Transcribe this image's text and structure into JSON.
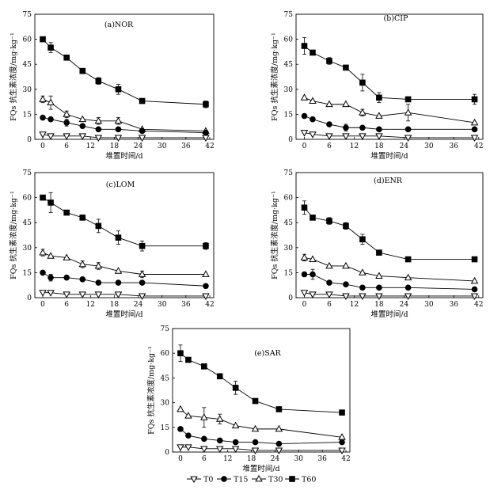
{
  "legend": [
    {
      "series": "T0",
      "label": "T0"
    },
    {
      "series": "T15",
      "label": "T15"
    },
    {
      "series": "T30",
      "label": "T30"
    },
    {
      "series": "T60",
      "label": "T60"
    }
  ],
  "styles": {
    "T0": {
      "marker": "triangle-down",
      "fill": "#ffffff",
      "stroke": "#000000"
    },
    "T15": {
      "marker": "circle",
      "fill": "#000000",
      "stroke": "#000000"
    },
    "T30": {
      "marker": "triangle-up",
      "fill": "#ffffff",
      "stroke": "#000000"
    },
    "T60": {
      "marker": "square",
      "fill": "#000000",
      "stroke": "#000000"
    }
  },
  "chart_data": [
    {
      "type": "line",
      "title": "(a)NOR",
      "xlabel": "堆置时间/d",
      "ylabel": "FQs 抗生素浓度/mg·kg⁻¹",
      "xticks": [
        0,
        6,
        12,
        18,
        24,
        30,
        36,
        42
      ],
      "yticks": [
        0,
        15,
        30,
        45,
        60,
        75
      ],
      "xlim": [
        -2,
        43
      ],
      "ylim": [
        0,
        75
      ],
      "x": [
        0,
        2,
        6,
        10,
        14,
        19,
        25,
        41
      ],
      "series": [
        {
          "name": "T60",
          "values": [
            60,
            55,
            49,
            41,
            35,
            30,
            23,
            21
          ],
          "errors": [
            0,
            3,
            0,
            0,
            2,
            3,
            0,
            2
          ]
        },
        {
          "name": "T30",
          "values": [
            24,
            22,
            15,
            12,
            11,
            11,
            6,
            5
          ],
          "errors": [
            2,
            4,
            2,
            0,
            2,
            2,
            0,
            0
          ]
        },
        {
          "name": "T15",
          "values": [
            13,
            12,
            10,
            8,
            6,
            6,
            5,
            4
          ],
          "errors": [
            0,
            0,
            2,
            0,
            0,
            0,
            0,
            0
          ]
        },
        {
          "name": "T0",
          "values": [
            3,
            2,
            2,
            2,
            1,
            1,
            1,
            1
          ],
          "errors": [
            0,
            0,
            0,
            0,
            0,
            0,
            0,
            0
          ]
        }
      ]
    },
    {
      "type": "line",
      "title": "(b)CIP",
      "xlabel": "堆置时间/d",
      "ylabel": "FQs 抗生素浓度/mg·kg⁻¹",
      "xticks": [
        0,
        6,
        12,
        18,
        24,
        30,
        36,
        42
      ],
      "yticks": [
        0,
        15,
        30,
        45,
        60,
        75
      ],
      "xlim": [
        -2,
        43
      ],
      "ylim": [
        0,
        75
      ],
      "x": [
        0,
        2,
        6,
        10,
        14,
        18,
        25,
        41
      ],
      "series": [
        {
          "name": "T60",
          "values": [
            56,
            52,
            47,
            43,
            34,
            25,
            24,
            24
          ],
          "errors": [
            5,
            0,
            2,
            0,
            5,
            3,
            0,
            3
          ]
        },
        {
          "name": "T30",
          "values": [
            25,
            23,
            21,
            21,
            16,
            14,
            16,
            10
          ],
          "errors": [
            0,
            0,
            0,
            0,
            2,
            0,
            5,
            0
          ]
        },
        {
          "name": "T15",
          "values": [
            14,
            12,
            9,
            7,
            7,
            6,
            6,
            6
          ],
          "errors": [
            0,
            0,
            0,
            2,
            0,
            0,
            0,
            0
          ]
        },
        {
          "name": "T0",
          "values": [
            4,
            3,
            2,
            2,
            2,
            2,
            1,
            1
          ],
          "errors": [
            0,
            0,
            0,
            0,
            0,
            0,
            0,
            0
          ]
        }
      ]
    },
    {
      "type": "line",
      "title": "(c)LOM",
      "xlabel": "堆置时间/d",
      "ylabel": "FQs 抗生素浓度/mg·kg⁻¹",
      "xticks": [
        0,
        6,
        12,
        18,
        24,
        30,
        36,
        42
      ],
      "yticks": [
        0,
        15,
        30,
        45,
        60,
        75
      ],
      "xlim": [
        -2,
        43
      ],
      "ylim": [
        0,
        75
      ],
      "x": [
        0,
        2,
        6,
        10,
        14,
        19,
        25,
        41
      ],
      "series": [
        {
          "name": "T60",
          "values": [
            60,
            57,
            51,
            48,
            43,
            36,
            31,
            31
          ],
          "errors": [
            0,
            6,
            0,
            0,
            4,
            4,
            3,
            2
          ]
        },
        {
          "name": "T30",
          "values": [
            27,
            25,
            24,
            20,
            19,
            16,
            14,
            14
          ],
          "errors": [
            2,
            0,
            0,
            2,
            2,
            0,
            2,
            0
          ]
        },
        {
          "name": "T15",
          "values": [
            15,
            12,
            12,
            11,
            9,
            9,
            9,
            7
          ],
          "errors": [
            0,
            2,
            0,
            0,
            0,
            0,
            0,
            0
          ]
        },
        {
          "name": "T0",
          "values": [
            3,
            3,
            2,
            2,
            2,
            2,
            1,
            1
          ],
          "errors": [
            0,
            0,
            0,
            0,
            0,
            0,
            0,
            0
          ]
        }
      ]
    },
    {
      "type": "line",
      "title": "(d)ENR",
      "xlabel": "堆置时间/d",
      "ylabel": "FQs 抗生素浓度/mg·kg⁻¹",
      "xticks": [
        0,
        6,
        12,
        18,
        24,
        30,
        36,
        42
      ],
      "yticks": [
        0,
        15,
        30,
        45,
        60,
        75
      ],
      "xlim": [
        -2,
        43
      ],
      "ylim": [
        0,
        75
      ],
      "x": [
        0,
        2,
        6,
        10,
        14,
        18,
        25,
        41
      ],
      "series": [
        {
          "name": "T60",
          "values": [
            54,
            48,
            46,
            43,
            35,
            27,
            23,
            23
          ],
          "errors": [
            4,
            0,
            2,
            2,
            3,
            0,
            0,
            0
          ]
        },
        {
          "name": "T30",
          "values": [
            24,
            23,
            19,
            19,
            15,
            13,
            12,
            10
          ],
          "errors": [
            2,
            0,
            0,
            0,
            0,
            0,
            0,
            0
          ]
        },
        {
          "name": "T15",
          "values": [
            14,
            14,
            9,
            8,
            6,
            6,
            6,
            5
          ],
          "errors": [
            0,
            3,
            0,
            0,
            0,
            0,
            0,
            0
          ]
        },
        {
          "name": "T0",
          "values": [
            3,
            2,
            2,
            1,
            1,
            1,
            1,
            1
          ],
          "errors": [
            0,
            0,
            0,
            0,
            0,
            0,
            0,
            0
          ]
        }
      ]
    },
    {
      "type": "line",
      "title": "(e)SAR",
      "xlabel": "堆置时间/d",
      "ylabel": "FQs 抗生素浓度/mg·kg⁻¹",
      "xticks": [
        0,
        6,
        12,
        18,
        24,
        30,
        36,
        42
      ],
      "yticks": [
        0,
        15,
        30,
        45,
        60,
        75
      ],
      "xlim": [
        -2,
        43
      ],
      "ylim": [
        0,
        75
      ],
      "x": [
        0,
        2,
        6,
        10,
        14,
        19,
        25,
        41
      ],
      "series": [
        {
          "name": "T60",
          "values": [
            60,
            56,
            52,
            46,
            39,
            31,
            26,
            24
          ],
          "errors": [
            5,
            0,
            0,
            0,
            4,
            0,
            0,
            0
          ]
        },
        {
          "name": "T30",
          "values": [
            26,
            22,
            21,
            20,
            16,
            14,
            14,
            9
          ],
          "errors": [
            0,
            0,
            6,
            3,
            0,
            0,
            0,
            0
          ]
        },
        {
          "name": "T15",
          "values": [
            14,
            10,
            8,
            7,
            6,
            6,
            5,
            6
          ],
          "errors": [
            0,
            0,
            0,
            0,
            0,
            0,
            0,
            0
          ]
        },
        {
          "name": "T0",
          "values": [
            3,
            3,
            2,
            2,
            2,
            1,
            1,
            1
          ],
          "errors": [
            0,
            0,
            0,
            0,
            0,
            0,
            0,
            0
          ]
        }
      ]
    }
  ]
}
